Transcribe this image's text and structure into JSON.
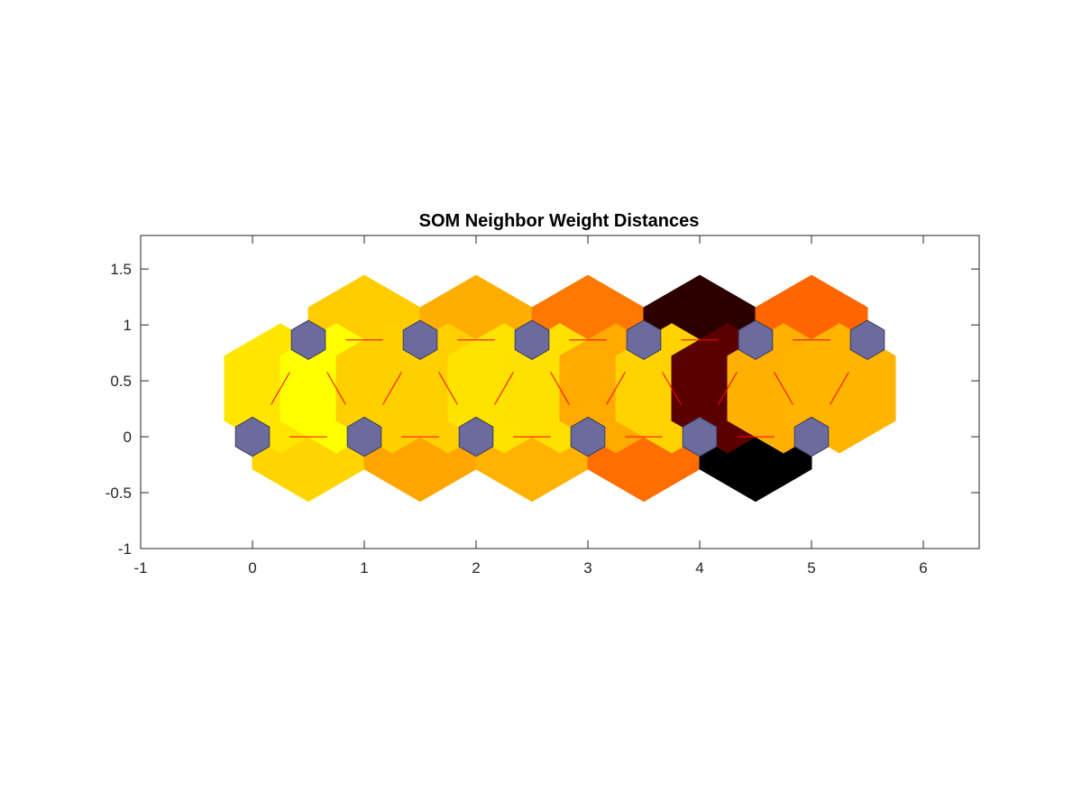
{
  "chart_data": {
    "type": "heatmap",
    "title": "SOM Neighbor Weight Distances",
    "xlabel": "",
    "ylabel": "",
    "xlim": [
      -1,
      6.5
    ],
    "ylim": [
      -1,
      1.8
    ],
    "x_ticks": [
      "-1",
      "0",
      "1",
      "2",
      "3",
      "4",
      "5",
      "6"
    ],
    "y_ticks": [
      "-1",
      "-0.5",
      "0",
      "0.5",
      "1",
      "1.5"
    ],
    "grid": false,
    "neuron_color": "#6b6b9e",
    "connection_line_color": "#ff0000",
    "neurons": [
      {
        "x": 0,
        "y": 0
      },
      {
        "x": 1,
        "y": 0
      },
      {
        "x": 2,
        "y": 0
      },
      {
        "x": 3,
        "y": 0
      },
      {
        "x": 4,
        "y": 0
      },
      {
        "x": 5,
        "y": 0
      },
      {
        "x": 0.5,
        "y": 0.866
      },
      {
        "x": 1.5,
        "y": 0.866
      },
      {
        "x": 2.5,
        "y": 0.866
      },
      {
        "x": 3.5,
        "y": 0.866
      },
      {
        "x": 4.5,
        "y": 0.866
      },
      {
        "x": 5.5,
        "y": 0.866
      }
    ],
    "connections": [
      {
        "x": 0.5,
        "y": 0,
        "color": "#ffd500",
        "dir": "h"
      },
      {
        "x": 1.5,
        "y": 0,
        "color": "#ffa500",
        "dir": "h"
      },
      {
        "x": 2.5,
        "y": 0,
        "color": "#ffb300",
        "dir": "h"
      },
      {
        "x": 3.5,
        "y": 0,
        "color": "#ff6e00",
        "dir": "h"
      },
      {
        "x": 4.5,
        "y": 0,
        "color": "#000000",
        "dir": "h"
      },
      {
        "x": 1,
        "y": 0.866,
        "color": "#ffcc00",
        "dir": "h"
      },
      {
        "x": 2,
        "y": 0.866,
        "color": "#ffae00",
        "dir": "h"
      },
      {
        "x": 3,
        "y": 0.866,
        "color": "#ff7800",
        "dir": "h"
      },
      {
        "x": 4,
        "y": 0.866,
        "color": "#2d0000",
        "dir": "h"
      },
      {
        "x": 5,
        "y": 0.866,
        "color": "#ff6600",
        "dir": "h"
      },
      {
        "x": 0.25,
        "y": 0.433,
        "color": "#ffe600",
        "dir": "u"
      },
      {
        "x": 0.75,
        "y": 0.433,
        "color": "#ffff00",
        "dir": "d"
      },
      {
        "x": 1.25,
        "y": 0.433,
        "color": "#ffd000",
        "dir": "u"
      },
      {
        "x": 1.75,
        "y": 0.433,
        "color": "#ffd000",
        "dir": "d"
      },
      {
        "x": 2.25,
        "y": 0.433,
        "color": "#ffe300",
        "dir": "u"
      },
      {
        "x": 2.75,
        "y": 0.433,
        "color": "#ffe000",
        "dir": "d"
      },
      {
        "x": 3.25,
        "y": 0.433,
        "color": "#ffaa00",
        "dir": "u"
      },
      {
        "x": 3.75,
        "y": 0.433,
        "color": "#ffd200",
        "dir": "d"
      },
      {
        "x": 4.25,
        "y": 0.433,
        "color": "#5a0000",
        "dir": "u"
      },
      {
        "x": 4.75,
        "y": 0.433,
        "color": "#ffb000",
        "dir": "d"
      },
      {
        "x": 5.25,
        "y": 0.433,
        "color": "#ffb400",
        "dir": "u"
      }
    ]
  }
}
